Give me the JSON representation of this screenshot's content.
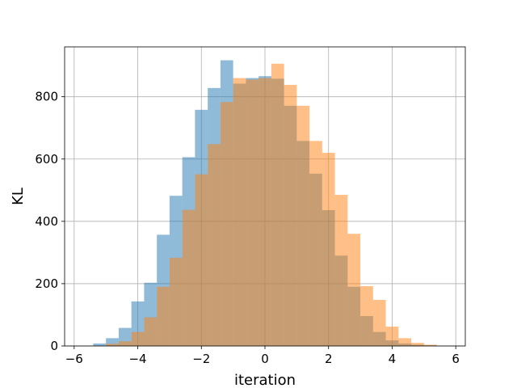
{
  "chart_data": {
    "type": "bar",
    "title": "",
    "xlabel": "iteration",
    "ylabel": "KL",
    "xlim": [
      -6.3,
      6.3
    ],
    "ylim": [
      0,
      960
    ],
    "xticks": [
      -6,
      -4,
      -2,
      0,
      2,
      4,
      6
    ],
    "xtick_labels": [
      "−6",
      "−4",
      "−2",
      "0",
      "2",
      "4",
      "6"
    ],
    "yticks": [
      0,
      200,
      400,
      600,
      800
    ],
    "ytick_labels": [
      "0",
      "200",
      "400",
      "600",
      "800"
    ],
    "grid": true,
    "legend": "none",
    "bin_width": 0.4,
    "series": [
      {
        "color": "#1f77b4",
        "alpha": 0.5,
        "bin_starts": [
          -5.4,
          -5.0,
          -4.6,
          -4.2,
          -3.8,
          -3.4,
          -3.0,
          -2.6,
          -2.2,
          -1.8,
          -1.4,
          -1.0,
          -0.6,
          -0.2,
          0.2,
          0.6,
          1.0,
          1.4,
          1.8,
          2.2,
          2.6,
          3.0,
          3.4,
          3.8,
          4.2,
          4.6,
          5.0
        ],
        "values": [
          8,
          25,
          58,
          143,
          203,
          357,
          482,
          606,
          758,
          828,
          917,
          842,
          860,
          866,
          858,
          771,
          658,
          553,
          436,
          290,
          190,
          96,
          45,
          18,
          8,
          4,
          2
        ]
      },
      {
        "color": "#ff7f0e",
        "alpha": 0.5,
        "bin_starts": [
          -5.0,
          -4.6,
          -4.2,
          -3.8,
          -3.4,
          -3.0,
          -2.6,
          -2.2,
          -1.8,
          -1.4,
          -1.0,
          -0.6,
          -0.2,
          0.2,
          0.6,
          1.0,
          1.4,
          1.8,
          2.2,
          2.6,
          3.0,
          3.4,
          3.8,
          4.2,
          4.6,
          5.0
        ],
        "values": [
          7,
          15,
          45,
          92,
          190,
          283,
          437,
          551,
          648,
          783,
          860,
          855,
          860,
          906,
          838,
          771,
          658,
          620,
          485,
          360,
          192,
          148,
          62,
          25,
          10,
          4
        ]
      }
    ]
  }
}
